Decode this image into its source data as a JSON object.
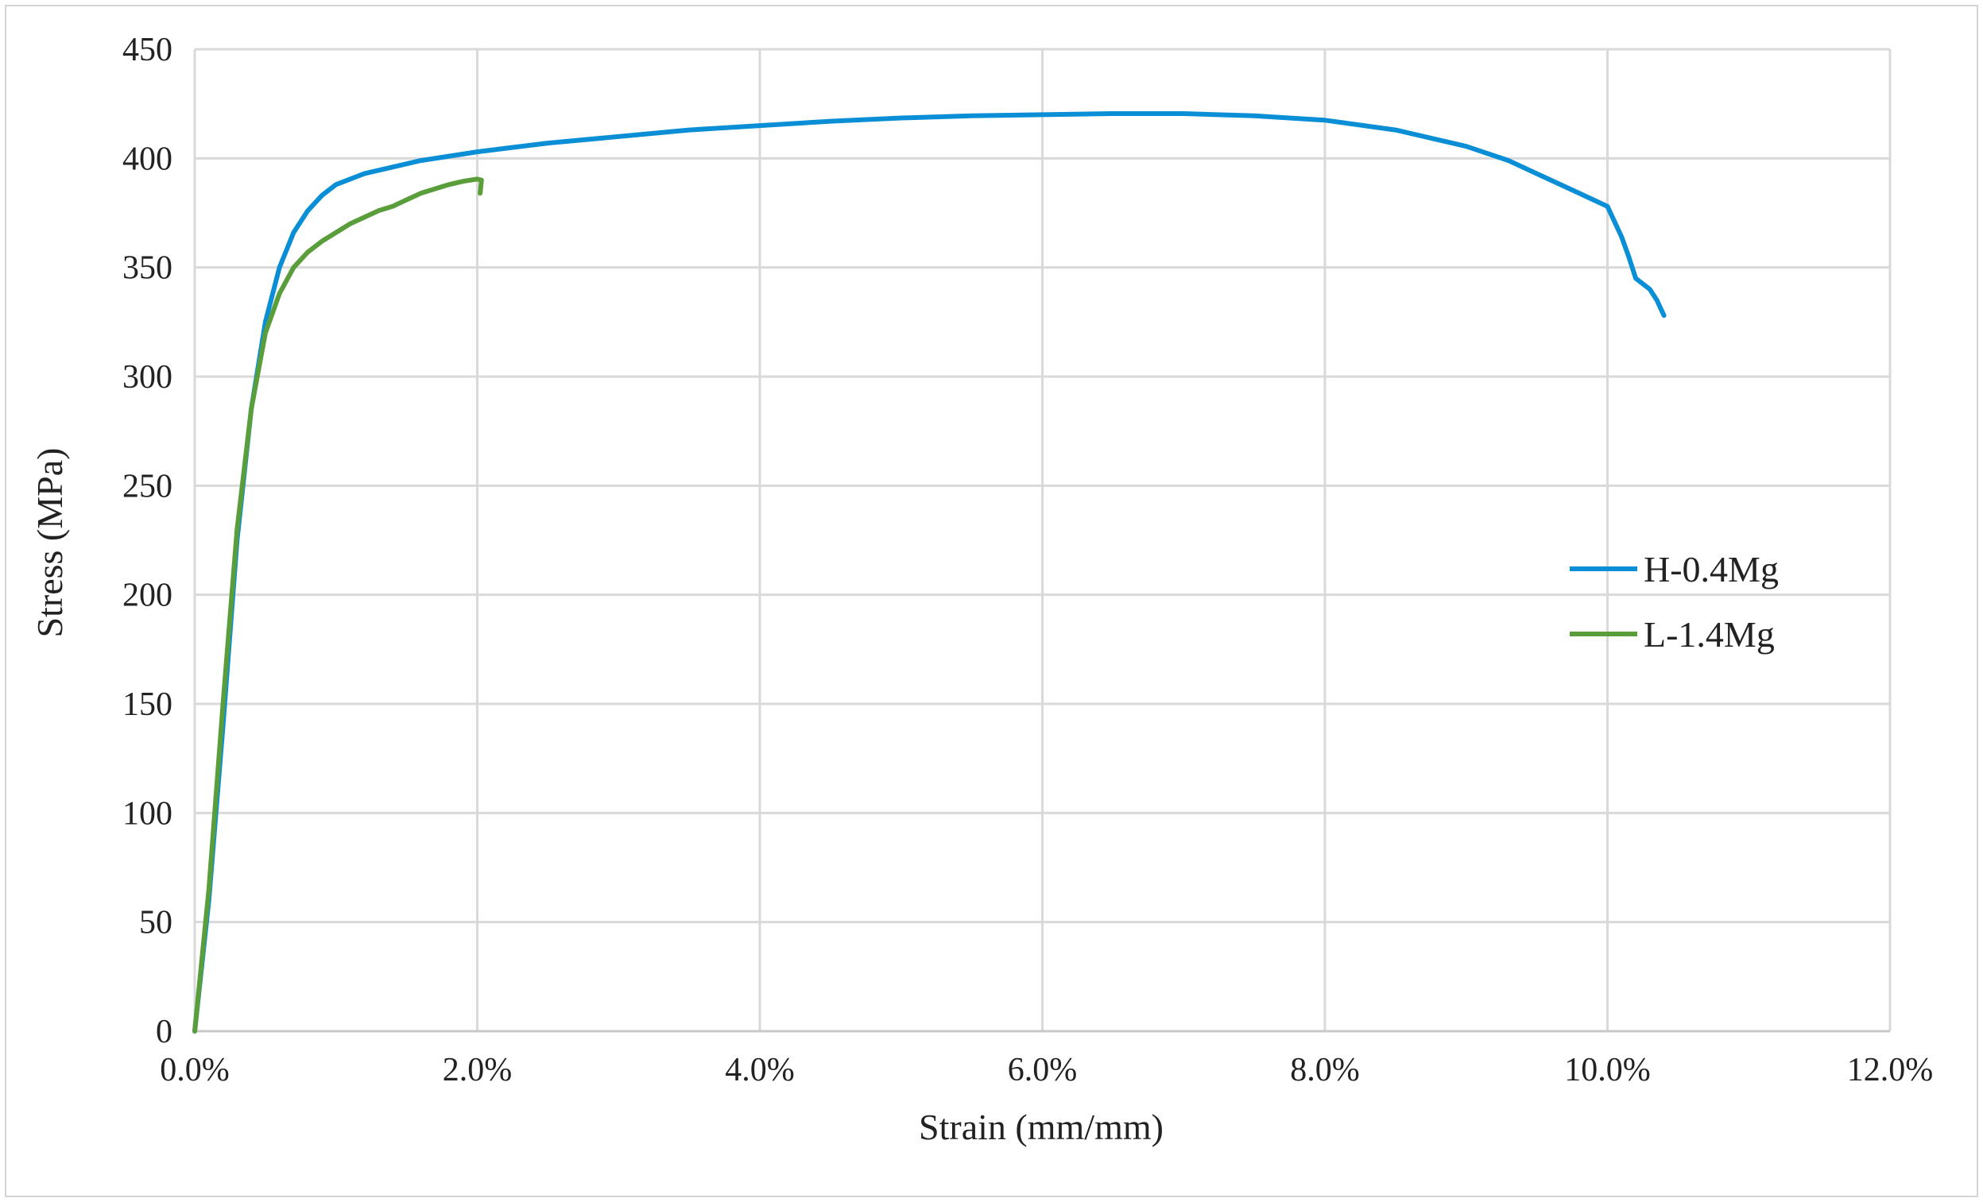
{
  "chart_data": {
    "type": "line",
    "title": "",
    "xlabel": "Strain (mm/mm)",
    "ylabel": "Stress (MPa)",
    "xlim": [
      0,
      0.12
    ],
    "ylim": [
      0,
      450
    ],
    "x_ticks": [
      0,
      0.02,
      0.04,
      0.06,
      0.08,
      0.1,
      0.12
    ],
    "x_tick_labels": [
      "0.0%",
      "2.0%",
      "4.0%",
      "6.0%",
      "8.0%",
      "10.0%",
      "12.0%"
    ],
    "y_ticks": [
      0,
      50,
      100,
      150,
      200,
      250,
      300,
      350,
      400,
      450
    ],
    "y_tick_labels": [
      "0",
      "50",
      "100",
      "150",
      "200",
      "250",
      "300",
      "350",
      "400",
      "450"
    ],
    "grid": true,
    "legend_position": "right",
    "series": [
      {
        "name": "H-0.4Mg",
        "color": "#0a8fd6",
        "points": [
          [
            0.0,
            0
          ],
          [
            0.001,
            60
          ],
          [
            0.002,
            140
          ],
          [
            0.003,
            225
          ],
          [
            0.004,
            285
          ],
          [
            0.005,
            325
          ],
          [
            0.006,
            350
          ],
          [
            0.007,
            366
          ],
          [
            0.008,
            376
          ],
          [
            0.009,
            383
          ],
          [
            0.01,
            388
          ],
          [
            0.012,
            393
          ],
          [
            0.014,
            396
          ],
          [
            0.016,
            399
          ],
          [
            0.02,
            403
          ],
          [
            0.025,
            407
          ],
          [
            0.03,
            410
          ],
          [
            0.035,
            413
          ],
          [
            0.04,
            415
          ],
          [
            0.045,
            417
          ],
          [
            0.05,
            418.5
          ],
          [
            0.055,
            419.5
          ],
          [
            0.06,
            420
          ],
          [
            0.065,
            420.5
          ],
          [
            0.07,
            420.5
          ],
          [
            0.075,
            419.5
          ],
          [
            0.08,
            417.5
          ],
          [
            0.085,
            413
          ],
          [
            0.09,
            405.5
          ],
          [
            0.093,
            399
          ],
          [
            0.095,
            393
          ],
          [
            0.097,
            387
          ],
          [
            0.099,
            381
          ],
          [
            0.1,
            378
          ],
          [
            0.101,
            364
          ],
          [
            0.1015,
            355
          ],
          [
            0.102,
            345
          ],
          [
            0.103,
            340
          ],
          [
            0.1035,
            335
          ],
          [
            0.104,
            328
          ]
        ]
      },
      {
        "name": "L-1.4Mg",
        "color": "#5a9e3c",
        "points": [
          [
            0.0,
            0
          ],
          [
            0.001,
            65
          ],
          [
            0.002,
            150
          ],
          [
            0.003,
            230
          ],
          [
            0.004,
            285
          ],
          [
            0.005,
            320
          ],
          [
            0.006,
            338
          ],
          [
            0.007,
            350
          ],
          [
            0.008,
            357
          ],
          [
            0.009,
            362
          ],
          [
            0.01,
            366
          ],
          [
            0.011,
            370
          ],
          [
            0.012,
            373
          ],
          [
            0.013,
            376
          ],
          [
            0.014,
            378
          ],
          [
            0.015,
            381
          ],
          [
            0.016,
            384
          ],
          [
            0.017,
            386
          ],
          [
            0.018,
            388
          ],
          [
            0.019,
            389.5
          ],
          [
            0.02,
            390.5
          ],
          [
            0.0203,
            390
          ],
          [
            0.0202,
            384
          ]
        ]
      }
    ]
  }
}
